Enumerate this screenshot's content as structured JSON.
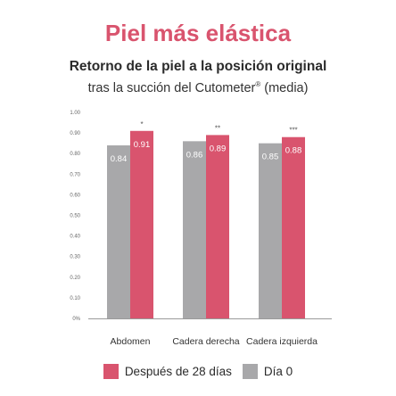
{
  "header": {
    "title": "Piel más elástica"
  },
  "colors": {
    "after": "#d9546e",
    "day0": "#a8a8aa",
    "title": "#d9546e"
  },
  "chart_data": {
    "type": "bar",
    "title": "Retorno de la piel a la posición original",
    "subtitle_main": "tras la succión del Cutometer",
    "subtitle_reg": "®",
    "subtitle_end": " (media)",
    "categories": [
      "Abdomen",
      "Cadera derecha",
      "Cadera izquierda"
    ],
    "series": [
      {
        "name": "Día 0",
        "values": [
          0.84,
          0.86,
          0.85
        ],
        "labels": [
          "0.84",
          "0.86",
          "0.85"
        ]
      },
      {
        "name": "Después de 28 días",
        "values": [
          0.91,
          0.89,
          0.88
        ],
        "labels": [
          "0.91",
          "0.89",
          "0.88"
        ]
      }
    ],
    "significance": [
      "*",
      "**",
      "***"
    ],
    "yticks": [
      "0%",
      "0.10",
      "0.20",
      "0.30",
      "0.40",
      "0.50",
      "0.60",
      "0.70",
      "0.80",
      "0.90",
      "1.00"
    ],
    "ylim": [
      0,
      1.0
    ],
    "legend_order": [
      "Después de 28 días",
      "Día 0"
    ],
    "legend_position": "bottom",
    "grid": false
  }
}
